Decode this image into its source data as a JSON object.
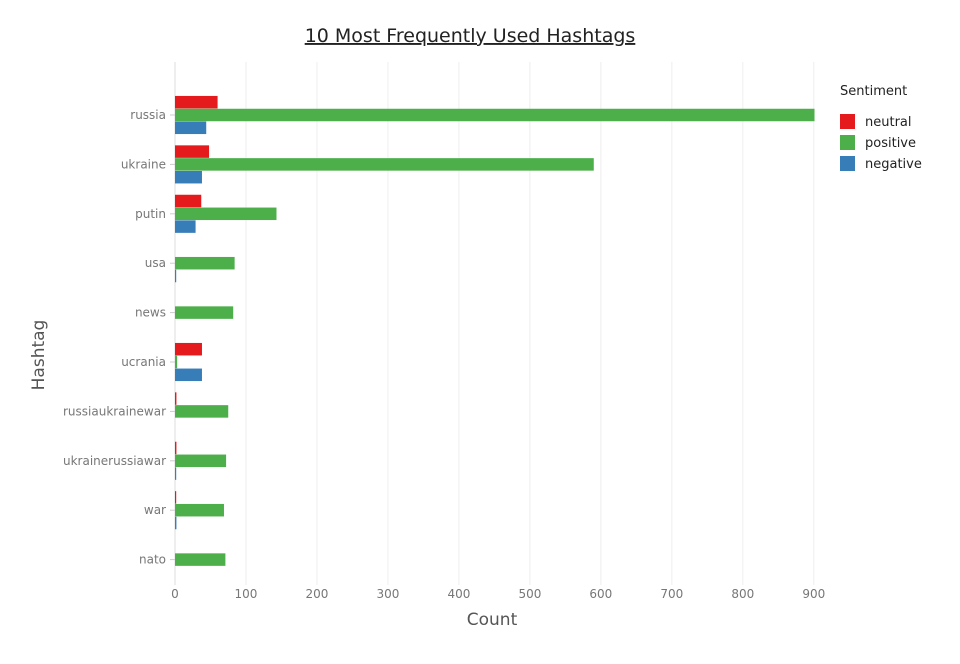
{
  "chart_data": {
    "type": "bar",
    "orientation": "horizontal",
    "barmode": "group",
    "title": "10 Most Frequently Used Hashtags",
    "xlabel": "Count",
    "ylabel": "Hashtag",
    "xlim": [
      0,
      920
    ],
    "xticks": [
      0,
      100,
      200,
      300,
      400,
      500,
      600,
      700,
      800,
      900
    ],
    "grid": "vertical",
    "legend_title": "Sentiment",
    "legend_position": "top-right",
    "categories": [
      "russia",
      "ukraine",
      "putin",
      "usa",
      "news",
      "ucrania",
      "russiaukrainewar",
      "ukrainerussiawar",
      "war",
      "nato"
    ],
    "series": [
      {
        "name": "neutral",
        "color": "#e41a1c",
        "values": [
          60,
          48,
          37,
          0,
          0,
          38,
          2,
          2,
          1,
          0
        ]
      },
      {
        "name": "positive",
        "color": "#4daf4a",
        "values": [
          901,
          590,
          143,
          84,
          82,
          3,
          75,
          72,
          69,
          71
        ]
      },
      {
        "name": "negative",
        "color": "#377eb8",
        "values": [
          44,
          38,
          29,
          1,
          0,
          38,
          0,
          1,
          2,
          0
        ]
      }
    ]
  }
}
